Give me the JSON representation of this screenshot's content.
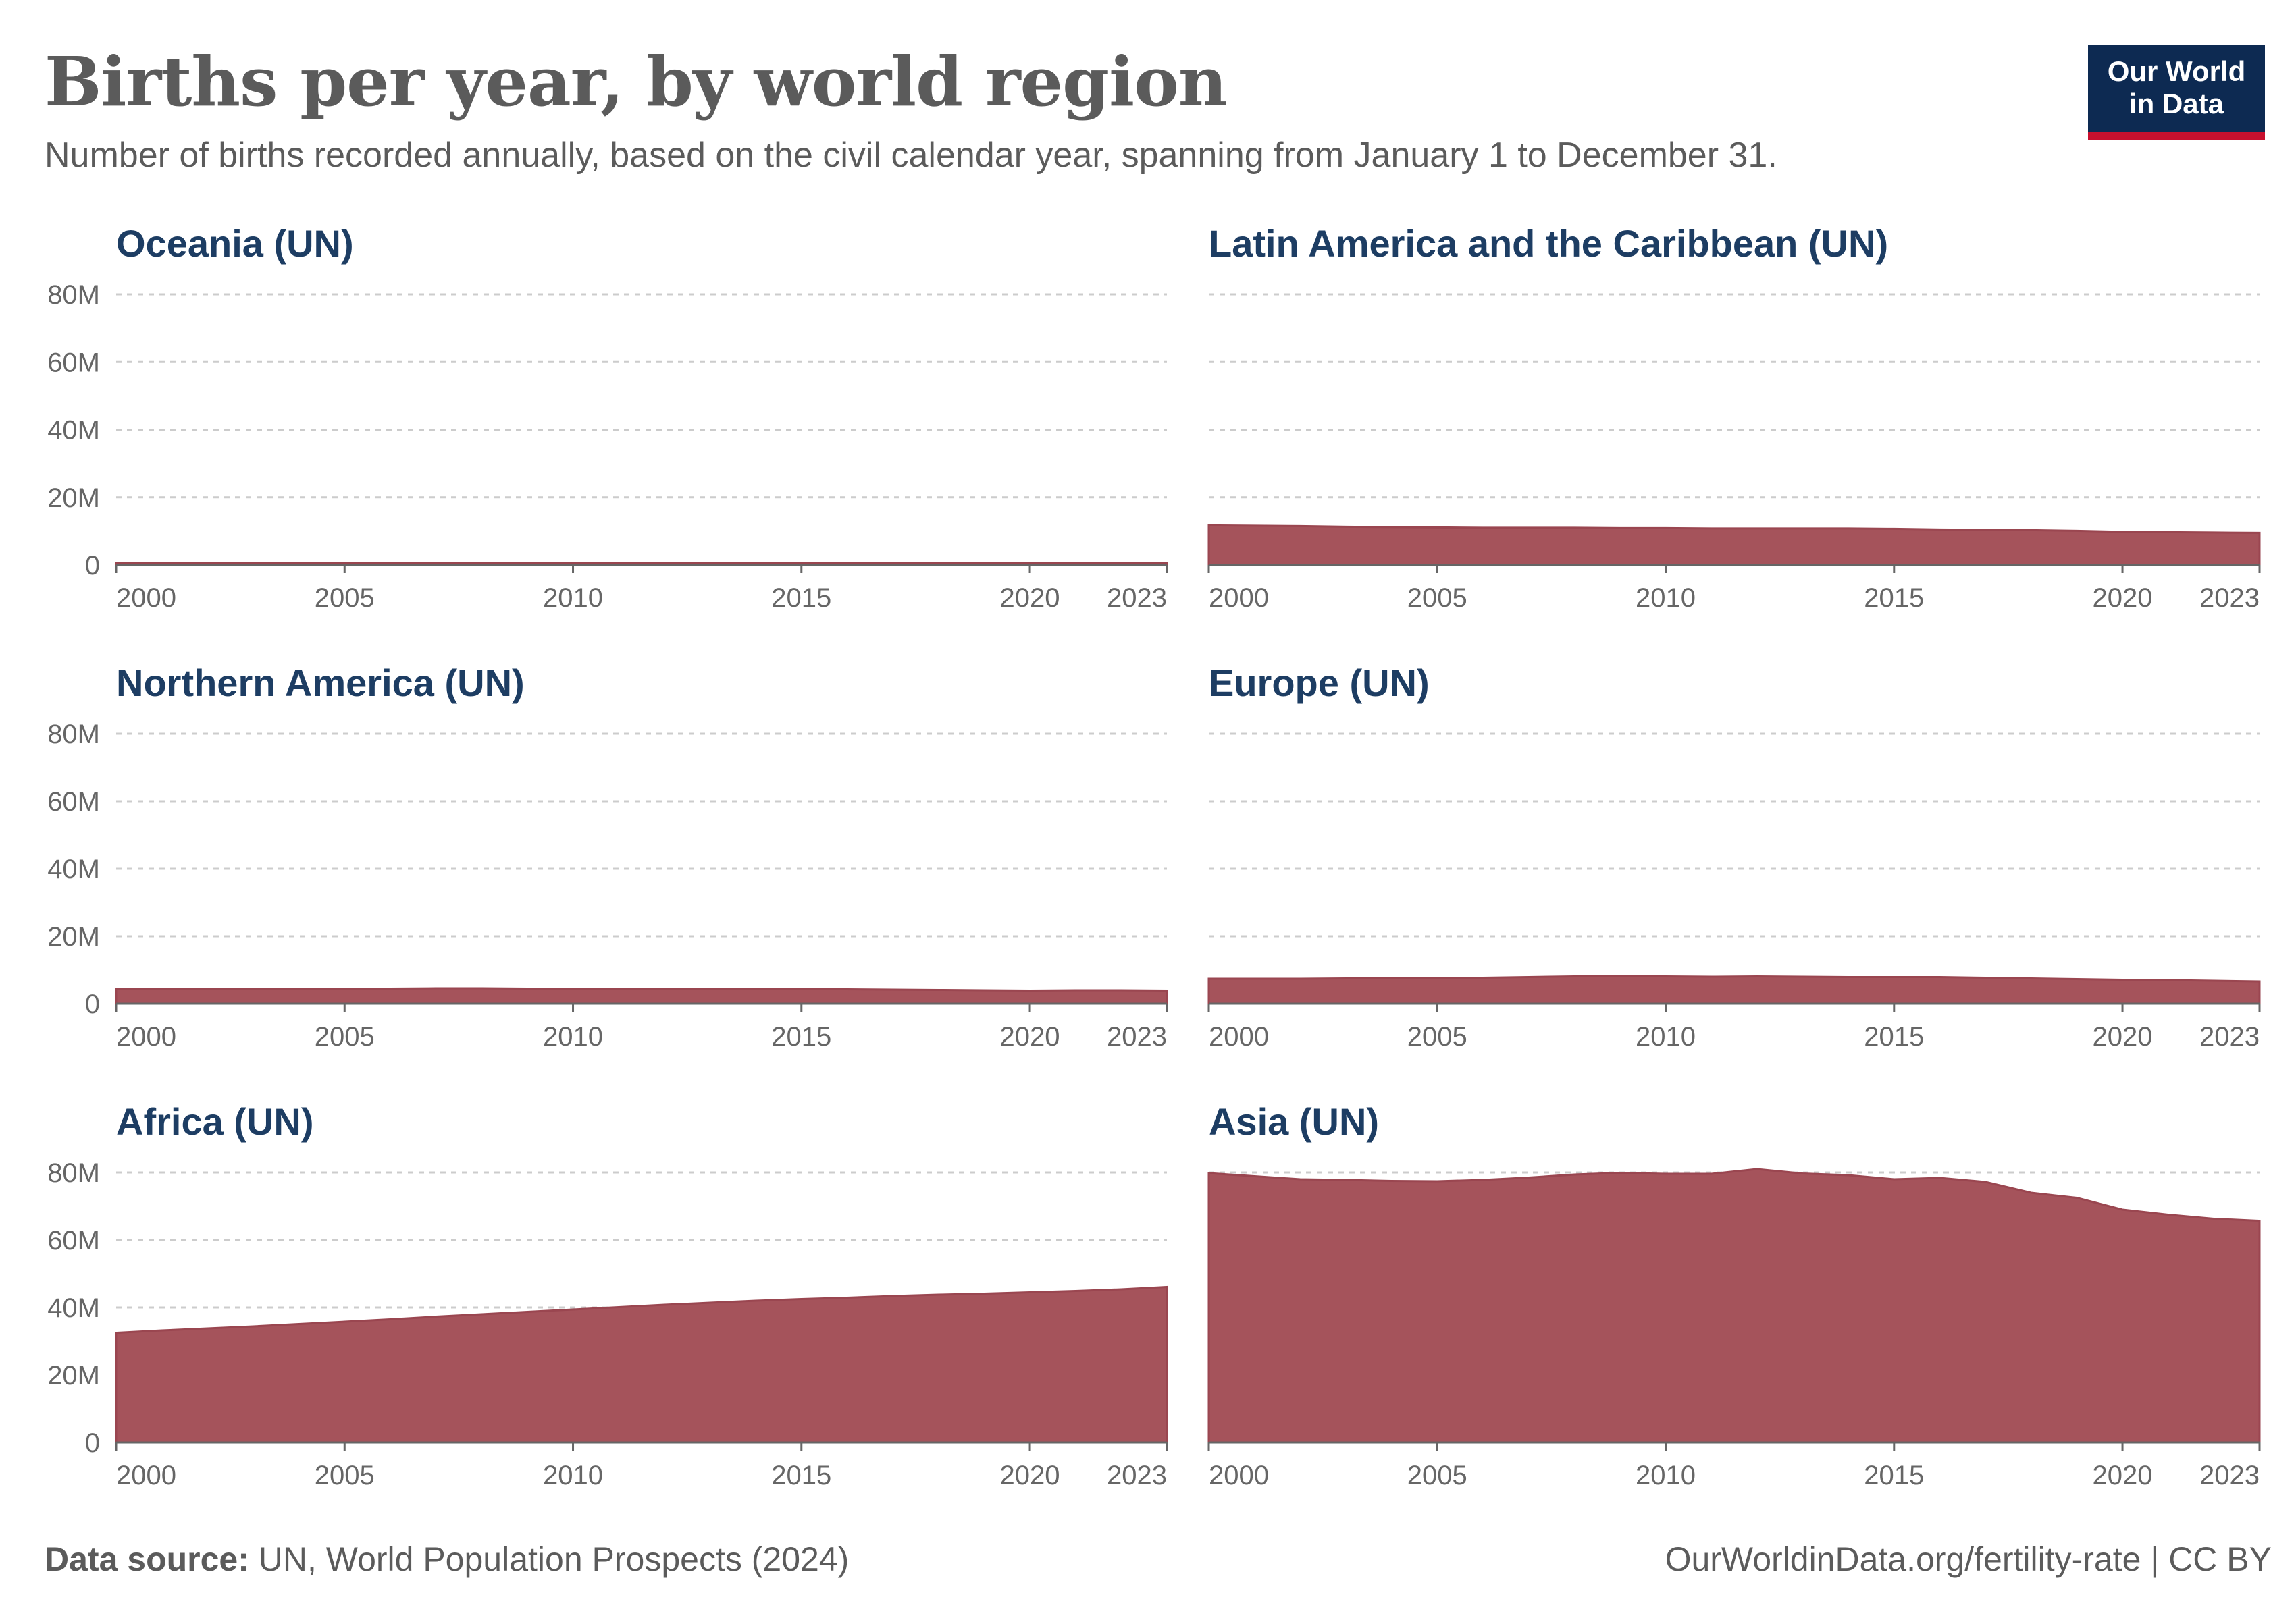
{
  "header": {
    "title": "Births per year, by world region",
    "subtitle": "Number of births recorded annually, based on the civil calendar year, spanning from January 1 to December 31.",
    "logo_line1": "Our World",
    "logo_line2": "in Data"
  },
  "footer": {
    "source_label": "Data source:",
    "source_text": " UN, World Population Prospects (2024)",
    "url": "OurWorldinData.org/fertility-rate | CC BY"
  },
  "colors": {
    "area": "#a5535b",
    "title": "#1d3d63",
    "grid": "#cccccc",
    "axis": "#666666",
    "logo_bg": "#0d2a52",
    "logo_accent": "#c8102e"
  },
  "chart_data": {
    "type": "area",
    "ylim": [
      0,
      80000000
    ],
    "xlim": [
      2000,
      2023
    ],
    "y_ticks": [
      0,
      20000000,
      40000000,
      60000000,
      80000000
    ],
    "y_tick_labels": [
      "0",
      "20M",
      "40M",
      "60M",
      "80M"
    ],
    "x_ticks": [
      2000,
      2005,
      2010,
      2015,
      2020,
      2023
    ],
    "x_tick_labels": [
      "2000",
      "2005",
      "2010",
      "2015",
      "2020",
      "2023"
    ],
    "grid": true,
    "x": [
      2000,
      2001,
      2002,
      2003,
      2004,
      2005,
      2006,
      2007,
      2008,
      2009,
      2010,
      2011,
      2012,
      2013,
      2014,
      2015,
      2016,
      2017,
      2018,
      2019,
      2020,
      2021,
      2022,
      2023
    ],
    "series": [
      {
        "name": "Oceania (UN)",
        "values": [
          600000,
          600000,
          590000,
          590000,
          600000,
          610000,
          620000,
          640000,
          650000,
          660000,
          660000,
          660000,
          670000,
          670000,
          670000,
          680000,
          680000,
          680000,
          680000,
          680000,
          670000,
          670000,
          660000,
          660000
        ]
      },
      {
        "name": "Latin America and the Caribbean (UN)",
        "values": [
          11700000,
          11600000,
          11500000,
          11300000,
          11200000,
          11100000,
          11000000,
          11000000,
          11000000,
          10900000,
          10900000,
          10800000,
          10800000,
          10800000,
          10800000,
          10700000,
          10500000,
          10400000,
          10300000,
          10100000,
          9800000,
          9700000,
          9600000,
          9500000
        ]
      },
      {
        "name": "Northern America (UN)",
        "values": [
          4300000,
          4300000,
          4300000,
          4400000,
          4400000,
          4400000,
          4500000,
          4600000,
          4600000,
          4500000,
          4400000,
          4300000,
          4300000,
          4300000,
          4300000,
          4300000,
          4300000,
          4200000,
          4100000,
          4000000,
          3900000,
          4000000,
          4000000,
          3900000
        ]
      },
      {
        "name": "Europe (UN)",
        "values": [
          7400000,
          7400000,
          7400000,
          7500000,
          7600000,
          7600000,
          7700000,
          7900000,
          8100000,
          8100000,
          8100000,
          8000000,
          8100000,
          8000000,
          7900000,
          7900000,
          7900000,
          7700000,
          7500000,
          7300000,
          7100000,
          7000000,
          6800000,
          6600000
        ]
      },
      {
        "name": "Africa (UN)",
        "values": [
          32500000,
          33200000,
          33800000,
          34400000,
          35100000,
          35800000,
          36500000,
          37300000,
          38000000,
          38700000,
          39400000,
          40100000,
          40800000,
          41400000,
          42000000,
          42500000,
          42900000,
          43400000,
          43800000,
          44100000,
          44500000,
          44900000,
          45400000,
          46100000
        ]
      },
      {
        "name": "Asia (UN)",
        "values": [
          79800000,
          78900000,
          78000000,
          77800000,
          77500000,
          77400000,
          77800000,
          78500000,
          79400000,
          79900000,
          79600000,
          79600000,
          81000000,
          79700000,
          79200000,
          78000000,
          78400000,
          77200000,
          74000000,
          72500000,
          69000000,
          67500000,
          66300000,
          65700000
        ]
      }
    ]
  }
}
